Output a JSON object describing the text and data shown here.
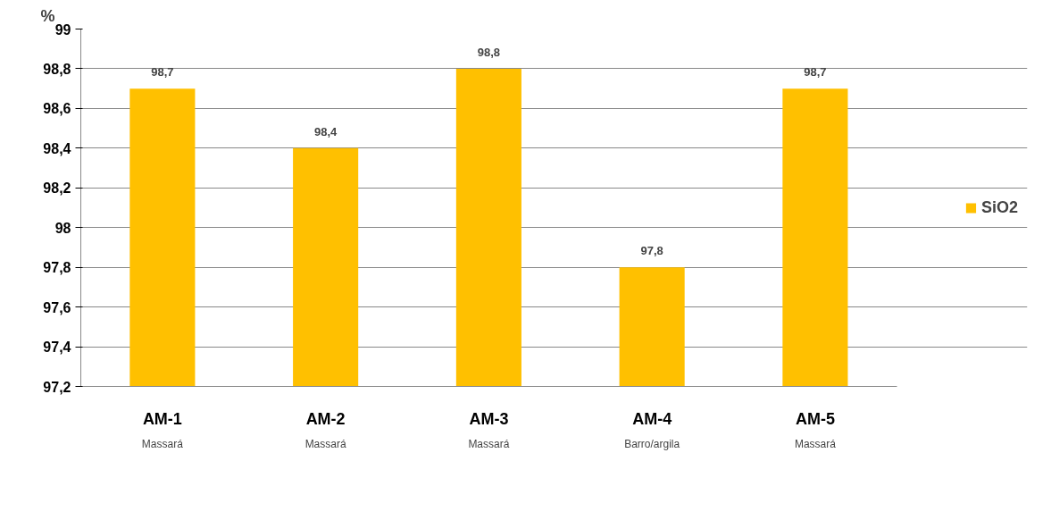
{
  "chart_data": {
    "type": "bar",
    "ylabel": "%",
    "categories": [
      "AM-1",
      "AM-2",
      "AM-3",
      "AM-4",
      "AM-5"
    ],
    "series": [
      {
        "name": "SiO2",
        "color": "#ffc000",
        "values": [
          98.7,
          98.4,
          98.8,
          97.8,
          98.7
        ]
      }
    ],
    "ylim": [
      97.2,
      99
    ],
    "yticks": [
      {
        "value": 97.2,
        "label": "97,2"
      },
      {
        "value": 97.4,
        "label": "97,4"
      },
      {
        "value": 97.6,
        "label": "97,6"
      },
      {
        "value": 97.8,
        "label": "97,8"
      },
      {
        "value": 98,
        "label": "98"
      },
      {
        "value": 98.2,
        "label": "98,2"
      },
      {
        "value": 98.4,
        "label": "98,4"
      },
      {
        "value": 98.6,
        "label": "98,6"
      },
      {
        "value": 98.8,
        "label": "98,8"
      },
      {
        "value": 99,
        "label": "99"
      }
    ],
    "value_labels": [
      "98,7",
      "98,4",
      "98,8",
      "97,8",
      "98,7"
    ],
    "annotations": [
      "Massará",
      "Massará",
      "Massará",
      "Barro/argila",
      "Massará"
    ],
    "grid": "y",
    "legend": "right"
  }
}
